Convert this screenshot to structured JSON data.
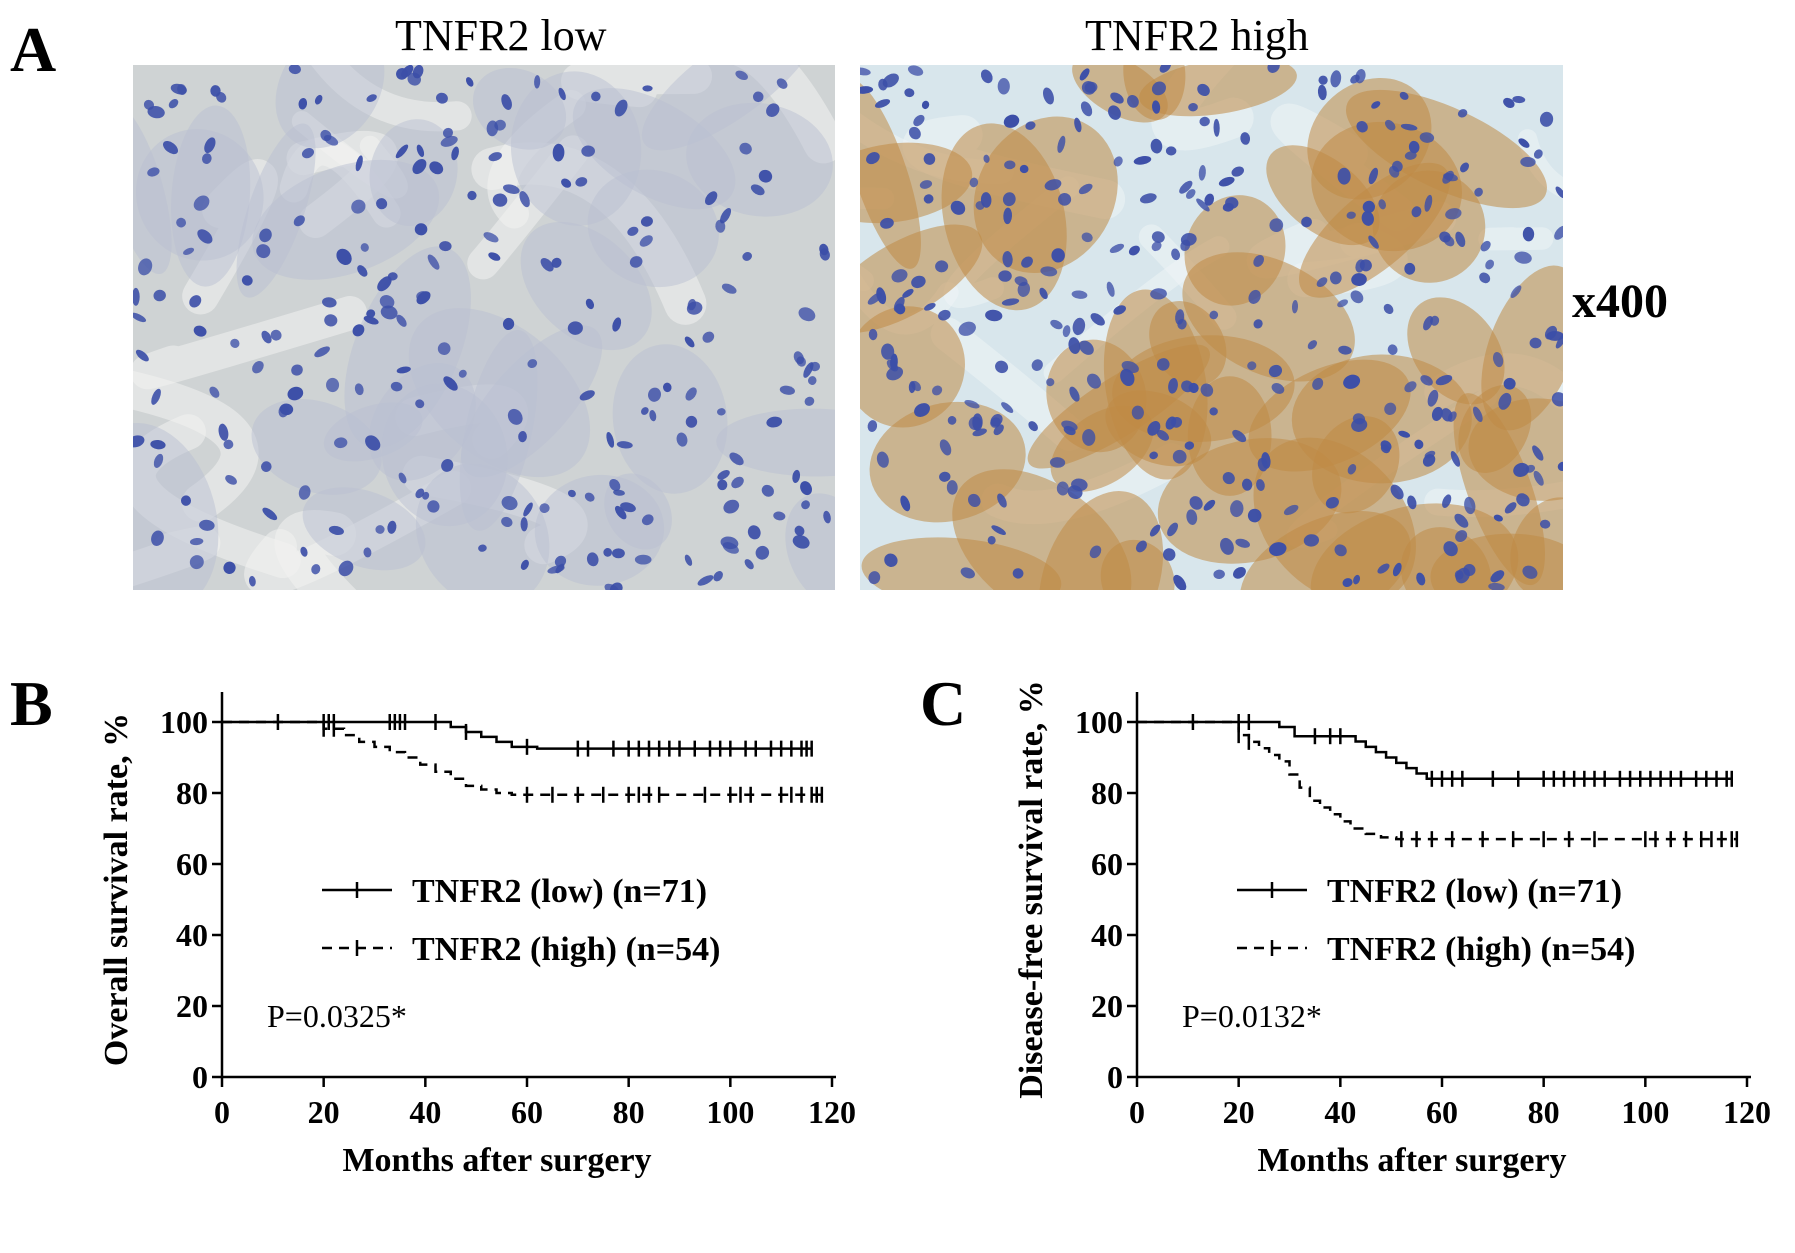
{
  "panels": {
    "a": {
      "letter": "A",
      "left_title": "TNFR2  low",
      "right_title": "TNFR2 high",
      "magnification": "x400"
    },
    "b": {
      "letter": "B"
    },
    "c": {
      "letter": "C"
    }
  },
  "colors": {
    "line": "#000000",
    "stain_low_bg": "#cfd3d4",
    "stain_high_bg": "#d8e6ec",
    "nucleus": "#3c4fa8",
    "dab_brown": "#c08a45"
  },
  "chart_data": [
    {
      "type": "line",
      "subtype": "kaplan-meier",
      "panel": "B",
      "title": "",
      "xlabel": "Months after surgery",
      "ylabel": "Overall survival rate, %",
      "xlim": [
        0,
        120
      ],
      "ylim": [
        0,
        100
      ],
      "xticks": [
        0,
        20,
        40,
        60,
        80,
        100,
        120
      ],
      "yticks": [
        0,
        20,
        40,
        60,
        80,
        100
      ],
      "annotation": "P=0.0325*",
      "legend_placement": "center",
      "series": [
        {
          "name": "TNFR2 (low) (n=71)",
          "style": "solid",
          "x": [
            0,
            38,
            45,
            48,
            51,
            54,
            57,
            62,
            116
          ],
          "y": [
            100,
            100,
            98.6,
            97.2,
            95.8,
            94.4,
            93.0,
            92.5,
            92.5
          ],
          "censored": [
            11,
            20,
            21,
            22,
            33,
            34,
            35,
            36,
            42,
            48,
            60,
            70,
            72,
            77,
            80,
            82,
            84,
            86,
            88,
            90,
            93,
            96,
            98,
            100,
            103,
            105,
            108,
            110,
            112,
            114,
            115,
            116
          ]
        },
        {
          "name": "TNFR2 (high) (n=54)",
          "style": "dashed",
          "x": [
            0,
            20,
            24,
            27,
            30,
            33,
            36,
            39,
            42,
            45,
            48,
            51,
            54,
            57,
            118
          ],
          "y": [
            100,
            98.1,
            96.3,
            94.4,
            93.0,
            91.5,
            90.0,
            88.0,
            86.0,
            84.0,
            82.0,
            81.0,
            80.0,
            79.5,
            79.5
          ],
          "censored": [
            20,
            22,
            60,
            65,
            70,
            75,
            80,
            82,
            84,
            86,
            95,
            100,
            102,
            104,
            110,
            112,
            114,
            116,
            117,
            118
          ]
        }
      ]
    },
    {
      "type": "line",
      "subtype": "kaplan-meier",
      "panel": "C",
      "title": "",
      "xlabel": "Months after surgery",
      "ylabel": "Disease-free survival rate, %",
      "xlim": [
        0,
        120
      ],
      "ylim": [
        0,
        100
      ],
      "xticks": [
        0,
        20,
        40,
        60,
        80,
        100,
        120
      ],
      "yticks": [
        0,
        20,
        40,
        60,
        80,
        100
      ],
      "annotation": "P=0.0132*",
      "legend_placement": "center",
      "series": [
        {
          "name": "TNFR2 (low) (n=71)",
          "style": "solid",
          "x": [
            0,
            28,
            31,
            43,
            45,
            47,
            49,
            51,
            53,
            55,
            57,
            117
          ],
          "y": [
            100,
            98.6,
            96.0,
            94.5,
            93.0,
            91.5,
            90.0,
            88.5,
            87.0,
            85.5,
            84.0,
            84.0
          ],
          "censored": [
            11,
            20,
            22,
            35,
            38,
            40,
            58,
            60,
            62,
            64,
            70,
            75,
            80,
            82,
            84,
            86,
            88,
            90,
            92,
            95,
            97,
            99,
            101,
            103,
            105,
            107,
            110,
            112,
            114,
            116,
            117
          ]
        },
        {
          "name": "TNFR2 (high) (n=54)",
          "style": "dashed",
          "x": [
            0,
            20,
            22,
            24,
            26,
            28,
            30,
            32,
            34,
            36,
            38,
            40,
            42,
            45,
            48,
            51,
            118
          ],
          "y": [
            100,
            96.3,
            94.4,
            92.6,
            90.7,
            88.9,
            85.2,
            81.5,
            77.8,
            75.9,
            74.0,
            72.0,
            70.0,
            68.5,
            67.5,
            67.0,
            67.0
          ],
          "censored": [
            20,
            22,
            52,
            55,
            58,
            62,
            68,
            74,
            80,
            85,
            90,
            100,
            102,
            105,
            108,
            111,
            113,
            115,
            117,
            118
          ]
        }
      ]
    }
  ]
}
